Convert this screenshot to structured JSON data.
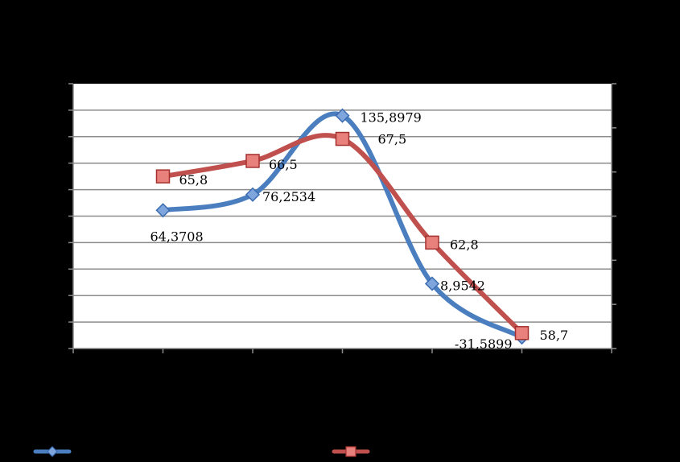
{
  "chart_data": {
    "type": "line",
    "smooth": true,
    "categories": [
      "",
      "",
      "",
      "",
      ""
    ],
    "series": [
      {
        "axis": "left",
        "color": "#4a7ebf",
        "marker": "diamond",
        "values": [
          64.3708,
          76.2534,
          135.8979,
          8.9542,
          -31.5899
        ],
        "labels": [
          "64,3708",
          "76,2534",
          "135,8979",
          "8,9542",
          "-31,5899"
        ]
      },
      {
        "axis": "right",
        "color": "#c0504d",
        "marker": "square",
        "values": [
          65.8,
          66.5,
          67.5,
          62.8,
          58.7
        ],
        "labels": [
          "65,8",
          "66,5",
          "67,5",
          "62,8",
          "58,7"
        ]
      }
    ],
    "ylim_left": [
      -40,
      160
    ],
    "ylim_right": [
      58,
      70
    ],
    "grid": true,
    "legend": "bottom",
    "plot_background": "#ffffff",
    "page_background": "#000000"
  }
}
